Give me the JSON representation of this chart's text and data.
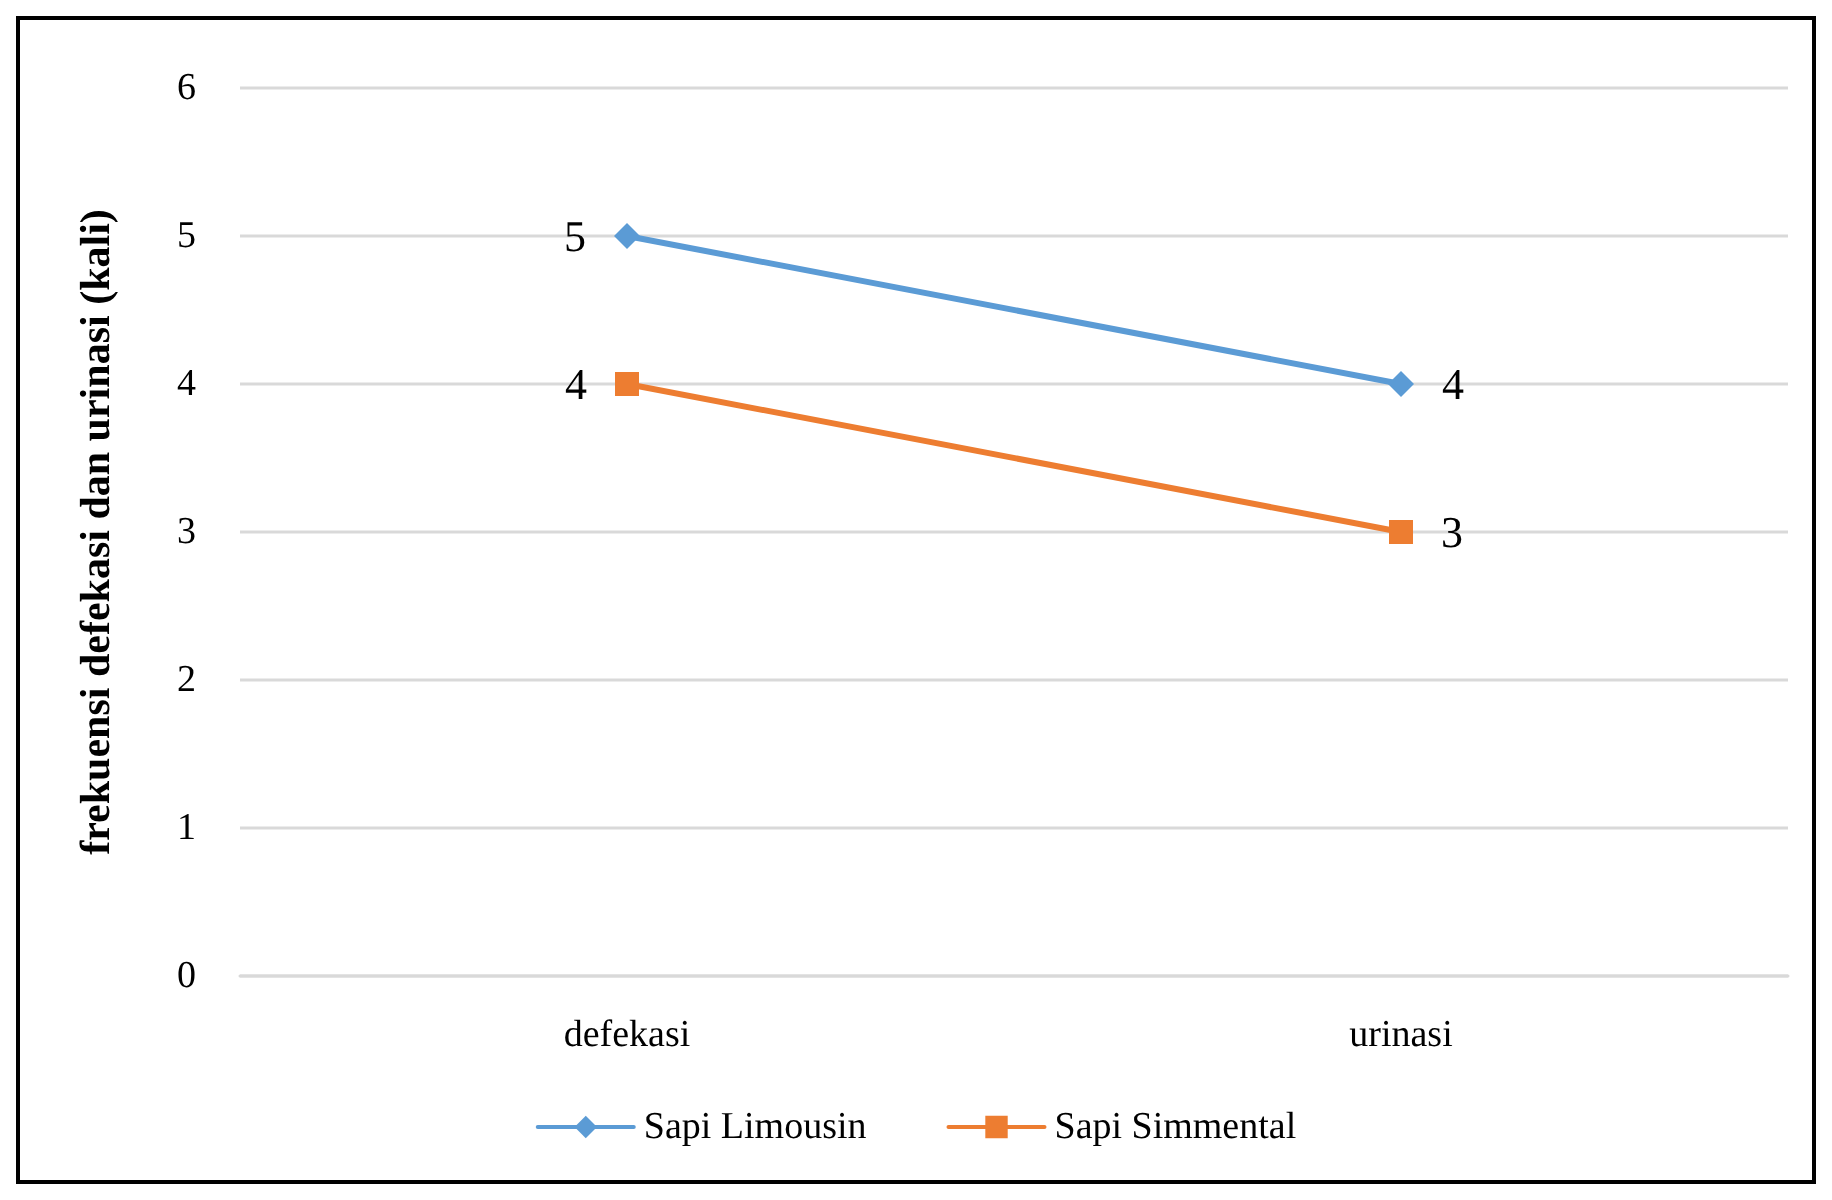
{
  "chart_data": {
    "type": "line",
    "ylabel": "frekuensi defekasi dan urinasi (kali)",
    "categories": [
      "defekasi",
      "urinasi"
    ],
    "series": [
      {
        "name": "Sapi Limousin",
        "color": "#5b9bd5",
        "marker": "diamond",
        "values": [
          5,
          4
        ]
      },
      {
        "name": "Sapi Simmental",
        "color": "#ed7d31",
        "marker": "square",
        "values": [
          4,
          3
        ]
      }
    ],
    "ylim": [
      0,
      6
    ],
    "yticks": [
      0,
      1,
      2,
      3,
      4,
      5,
      6
    ],
    "grid": "y",
    "legend": "bottom",
    "data_labels": true
  }
}
